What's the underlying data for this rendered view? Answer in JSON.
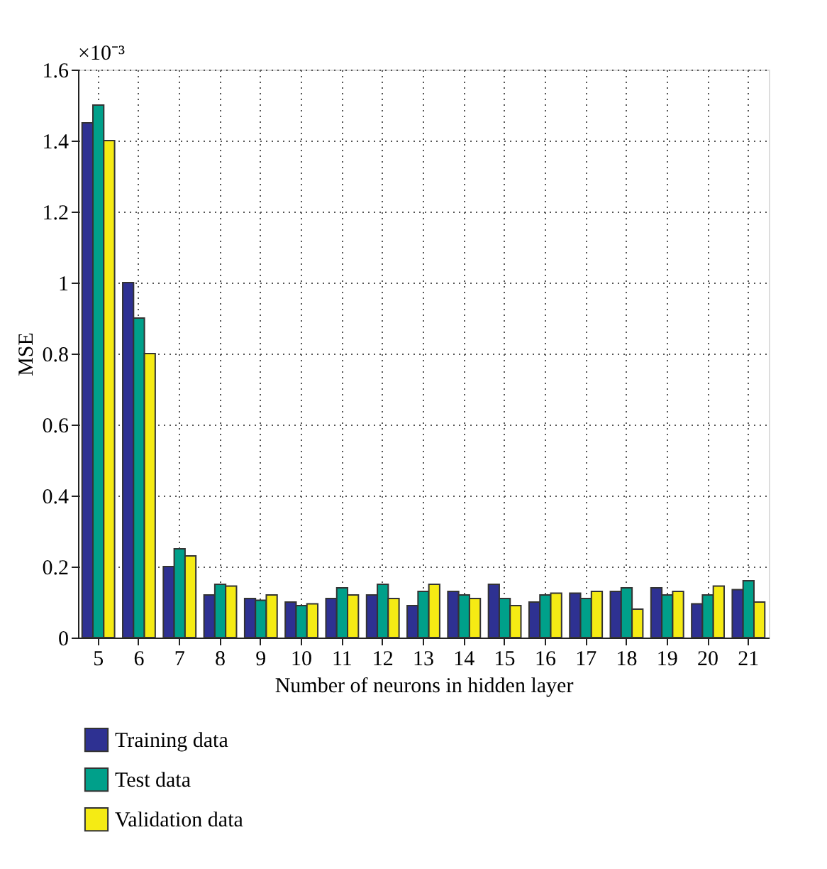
{
  "chart_data": {
    "type": "bar",
    "xlabel": "Number of neurons in hidden layer",
    "ylabel": "MSE",
    "annotations": [
      "×10⁻³"
    ],
    "categories": [
      "5",
      "6",
      "7",
      "8",
      "9",
      "10",
      "11",
      "12",
      "13",
      "14",
      "15",
      "16",
      "17",
      "18",
      "19",
      "20",
      "21"
    ],
    "series": [
      {
        "name": "Training data",
        "color": "#2e3192",
        "values": [
          1.45,
          1.0,
          0.2,
          0.12,
          0.11,
          0.1,
          0.11,
          0.12,
          0.09,
          0.13,
          0.15,
          0.1,
          0.125,
          0.13,
          0.14,
          0.095,
          0.135
        ]
      },
      {
        "name": "Test data",
        "color": "#00a08a",
        "values": [
          1.5,
          0.9,
          0.25,
          0.15,
          0.105,
          0.09,
          0.14,
          0.15,
          0.13,
          0.12,
          0.11,
          0.12,
          0.11,
          0.14,
          0.12,
          0.12,
          0.16
        ]
      },
      {
        "name": "Validation data",
        "color": "#f5eb14",
        "values": [
          1.4,
          0.8,
          0.23,
          0.145,
          0.12,
          0.095,
          0.12,
          0.11,
          0.15,
          0.11,
          0.09,
          0.125,
          0.13,
          0.08,
          0.13,
          0.145,
          0.1
        ]
      }
    ],
    "ylim": [
      0,
      1.6
    ],
    "yticks": [
      0,
      0.2,
      0.4,
      0.6,
      0.8,
      1,
      1.2,
      1.4,
      1.6
    ],
    "grid": true,
    "legend": "bottom"
  }
}
